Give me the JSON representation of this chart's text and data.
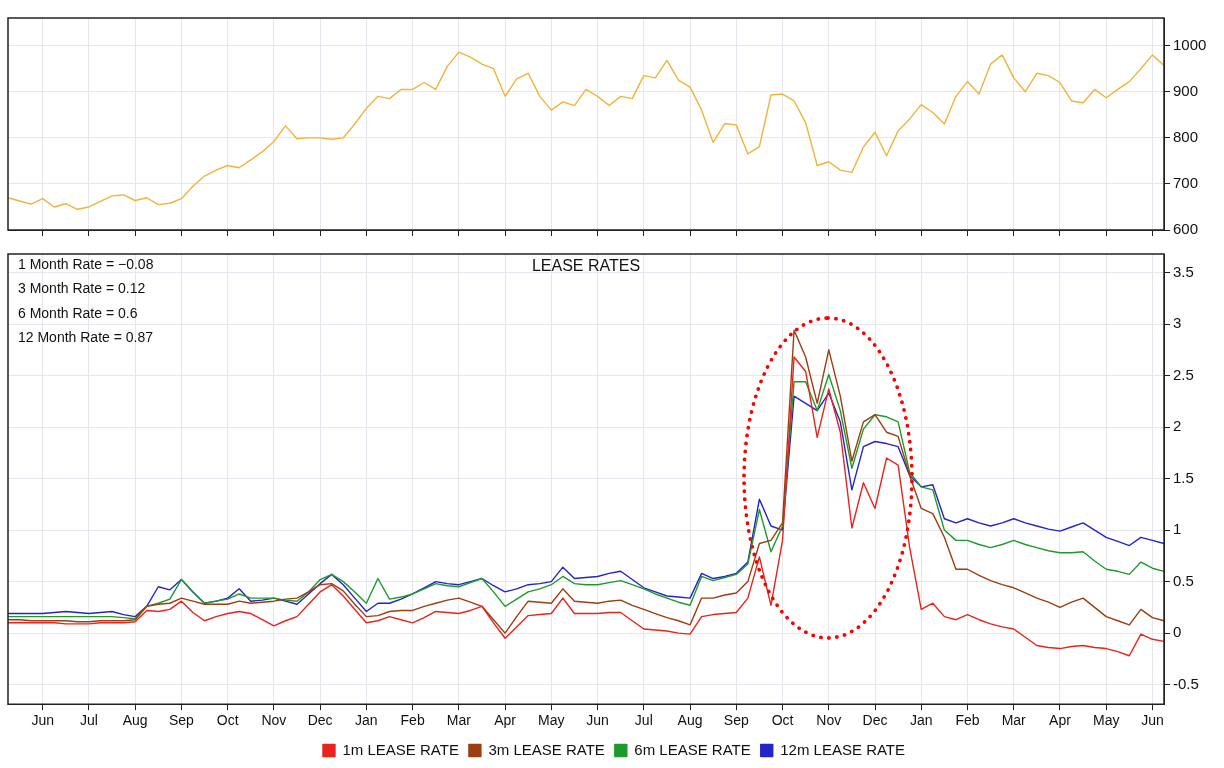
{
  "chart_data": [
    {
      "type": "line",
      "ylim": [
        600,
        1060
      ],
      "categories": [
        null,
        null,
        null,
        null,
        null,
        null,
        null,
        null,
        null,
        null,
        null,
        null,
        null,
        null,
        null,
        null,
        null,
        null,
        null,
        null,
        null,
        null,
        null,
        null,
        null,
        null,
        null,
        null,
        null,
        null,
        null,
        null,
        null,
        null,
        null,
        null,
        null,
        null,
        null,
        null,
        null,
        null,
        null,
        null,
        null,
        null,
        null,
        null,
        null,
        null,
        null,
        null,
        null,
        null,
        null,
        null,
        null,
        null,
        null,
        null,
        null,
        null,
        null,
        null,
        null,
        null,
        null,
        null,
        null,
        null,
        null,
        null,
        null,
        null,
        null,
        null,
        null,
        null,
        null,
        null,
        null,
        null,
        null,
        null,
        null,
        null,
        null,
        null,
        null,
        null,
        null,
        null,
        null,
        null,
        null,
        null,
        null,
        null,
        null,
        null,
        null
      ],
      "yticks": [
        600,
        700,
        800,
        900,
        1000
      ],
      "tick_labels": "y",
      "grid": true,
      "marker": "none",
      "series": [
        {
          "color": "#f0b43c",
          "values": [
            670,
            663,
            656,
            668,
            650,
            657,
            645,
            650,
            662,
            674,
            676,
            664,
            670,
            655,
            658,
            668,
            695,
            717,
            730,
            740,
            735,
            752,
            770,
            792,
            826,
            798,
            800,
            800,
            797,
            800,
            830,
            864,
            890,
            885,
            905,
            905,
            920,
            905,
            955,
            986,
            975,
            960,
            950,
            890,
            928,
            940,
            890,
            860,
            878,
            870,
            905,
            890,
            870,
            890,
            885,
            935,
            930,
            968,
            925,
            910,
            860,
            790,
            831,
            828,
            765,
            781,
            893,
            895,
            880,
            833,
            740,
            748,
            730,
            725,
            780,
            812,
            761,
            815,
            841,
            872,
            855,
            830,
            890,
            922,
            895,
            960,
            980,
            930,
            900,
            940,
            935,
            920,
            880,
            876,
            905,
            887,
            905,
            922,
            950,
            980,
            957
          ]
        }
      ]
    },
    {
      "type": "line",
      "title": "LEASE RATES",
      "annotations": [
        "1 Month Rate = −0.08",
        "3 Month Rate = 0.12",
        "6 Month Rate = 0.6",
        "12 Month Rate = 0.87"
      ],
      "ylim": [
        -0.69,
        3.68
      ],
      "categories": [
        null,
        null,
        null,
        "Jun",
        null,
        null,
        null,
        "Jul",
        null,
        null,
        null,
        "Aug",
        null,
        null,
        null,
        "Sep",
        null,
        null,
        null,
        "Oct",
        null,
        null,
        null,
        "Nov",
        null,
        null,
        null,
        "Dec",
        null,
        null,
        null,
        "Jan",
        null,
        null,
        null,
        "Feb",
        null,
        null,
        null,
        "Mar",
        null,
        null,
        null,
        "Apr",
        null,
        null,
        null,
        "May",
        null,
        null,
        null,
        "Jun",
        null,
        null,
        null,
        "Jul",
        null,
        null,
        null,
        "Aug",
        null,
        null,
        null,
        "Sep",
        null,
        null,
        null,
        "Oct",
        null,
        null,
        null,
        "Nov",
        null,
        null,
        null,
        "Dec",
        null,
        null,
        null,
        "Jan",
        null,
        null,
        null,
        "Feb",
        null,
        null,
        null,
        "Mar",
        null,
        null,
        null,
        "Apr",
        null,
        null,
        null,
        "May",
        null,
        null,
        null,
        "Jun",
        null
      ],
      "yticks": [
        -0.5,
        0,
        0.5,
        1,
        1.5,
        2,
        2.5,
        3,
        3.5
      ],
      "grid": true,
      "legend": "bottom",
      "marker": "none",
      "series": [
        {
          "name": "1m LEASE RATE",
          "color": "#e8241c",
          "values": [
            0.1,
            0.1,
            0.1,
            0.1,
            0.1,
            0.09,
            0.09,
            0.09,
            0.1,
            0.1,
            0.1,
            0.11,
            0.22,
            0.21,
            0.23,
            0.31,
            0.2,
            0.12,
            0.16,
            0.19,
            0.21,
            0.19,
            0.13,
            0.07,
            0.12,
            0.16,
            0.28,
            0.4,
            0.47,
            0.36,
            0.23,
            0.1,
            0.12,
            0.16,
            0.13,
            0.1,
            0.15,
            0.21,
            0.2,
            0.19,
            0.22,
            0.26,
            0.1,
            -0.05,
            0.06,
            0.17,
            0.18,
            0.19,
            0.34,
            0.19,
            0.19,
            0.19,
            0.2,
            0.2,
            0.12,
            0.04,
            0.03,
            0.02,
            0.0,
            -0.01,
            0.16,
            0.18,
            0.19,
            0.2,
            0.34,
            0.74,
            0.27,
            0.9,
            2.68,
            2.54,
            1.9,
            2.37,
            1.95,
            1.02,
            1.46,
            1.21,
            1.7,
            1.63,
            0.83,
            0.23,
            0.29,
            0.16,
            0.13,
            0.18,
            0.13,
            0.09,
            0.06,
            0.04,
            -0.04,
            -0.12,
            -0.14,
            -0.15,
            -0.13,
            -0.12,
            -0.14,
            -0.15,
            -0.18,
            -0.22,
            -0.01,
            -0.06,
            -0.08
          ]
        },
        {
          "name": "3m LEASE RATE",
          "color": "#9c3d12",
          "values": [
            0.13,
            0.13,
            0.12,
            0.12,
            0.12,
            0.12,
            0.11,
            0.11,
            0.12,
            0.12,
            0.12,
            0.13,
            0.26,
            0.28,
            0.29,
            0.34,
            0.31,
            0.28,
            0.28,
            0.28,
            0.31,
            0.29,
            0.3,
            0.31,
            0.33,
            0.34,
            0.4,
            0.47,
            0.48,
            0.41,
            0.28,
            0.16,
            0.17,
            0.21,
            0.22,
            0.22,
            0.26,
            0.29,
            0.32,
            0.34,
            0.3,
            0.26,
            0.13,
            0.0,
            0.16,
            0.31,
            0.3,
            0.29,
            0.43,
            0.31,
            0.3,
            0.29,
            0.31,
            0.32,
            0.27,
            0.23,
            0.19,
            0.15,
            0.12,
            0.08,
            0.34,
            0.34,
            0.37,
            0.39,
            0.5,
            0.87,
            0.9,
            1.07,
            2.94,
            2.68,
            2.23,
            2.75,
            2.3,
            1.67,
            2.05,
            2.12,
            1.95,
            1.91,
            1.53,
            1.21,
            1.16,
            0.93,
            0.62,
            0.62,
            0.56,
            0.51,
            0.47,
            0.44,
            0.39,
            0.34,
            0.3,
            0.25,
            0.3,
            0.34,
            0.25,
            0.16,
            0.12,
            0.08,
            0.23,
            0.15,
            0.12
          ]
        },
        {
          "name": "6m LEASE RATE",
          "color": "#1f9a2a",
          "values": [
            0.16,
            0.16,
            0.16,
            0.16,
            0.16,
            0.16,
            0.16,
            0.16,
            0.16,
            0.16,
            0.15,
            0.14,
            0.26,
            0.29,
            0.33,
            0.52,
            0.4,
            0.29,
            0.31,
            0.33,
            0.38,
            0.34,
            0.34,
            0.34,
            0.32,
            0.31,
            0.4,
            0.52,
            0.57,
            0.5,
            0.4,
            0.29,
            0.53,
            0.33,
            0.35,
            0.38,
            0.43,
            0.48,
            0.46,
            0.45,
            0.49,
            0.53,
            0.4,
            0.26,
            0.33,
            0.4,
            0.43,
            0.47,
            0.55,
            0.48,
            0.47,
            0.47,
            0.49,
            0.51,
            0.47,
            0.43,
            0.38,
            0.34,
            0.3,
            0.27,
            0.55,
            0.51,
            0.54,
            0.57,
            0.67,
            1.2,
            0.79,
            1.04,
            2.44,
            2.44,
            2.16,
            2.51,
            2.16,
            1.6,
            1.98,
            2.12,
            2.1,
            2.05,
            1.56,
            1.42,
            1.39,
            1.0,
            0.9,
            0.9,
            0.86,
            0.83,
            0.86,
            0.9,
            0.86,
            0.83,
            0.8,
            0.78,
            0.78,
            0.79,
            0.7,
            0.62,
            0.6,
            0.57,
            0.69,
            0.63,
            0.6
          ]
        },
        {
          "name": "12m LEASE RATE",
          "color": "#2424c8",
          "values": [
            0.19,
            0.19,
            0.19,
            0.19,
            0.2,
            0.21,
            0.2,
            0.19,
            0.2,
            0.21,
            0.18,
            0.16,
            0.26,
            0.45,
            0.42,
            0.52,
            0.4,
            0.29,
            0.31,
            0.34,
            0.43,
            0.31,
            0.32,
            0.34,
            0.31,
            0.28,
            0.38,
            0.48,
            0.57,
            0.47,
            0.34,
            0.21,
            0.29,
            0.29,
            0.33,
            0.38,
            0.44,
            0.5,
            0.48,
            0.47,
            0.5,
            0.53,
            0.46,
            0.4,
            0.43,
            0.47,
            0.48,
            0.5,
            0.64,
            0.53,
            0.54,
            0.55,
            0.58,
            0.6,
            0.52,
            0.44,
            0.4,
            0.36,
            0.35,
            0.34,
            0.58,
            0.53,
            0.55,
            0.58,
            0.69,
            1.3,
            1.04,
            1.0,
            2.3,
            2.23,
            2.16,
            2.33,
            2.05,
            1.39,
            1.81,
            1.86,
            1.84,
            1.81,
            1.53,
            1.42,
            1.44,
            1.11,
            1.07,
            1.11,
            1.07,
            1.04,
            1.07,
            1.11,
            1.07,
            1.04,
            1.01,
            0.99,
            1.03,
            1.07,
            1.0,
            0.93,
            0.89,
            0.85,
            0.93,
            0.9,
            0.87
          ]
        }
      ]
    }
  ]
}
